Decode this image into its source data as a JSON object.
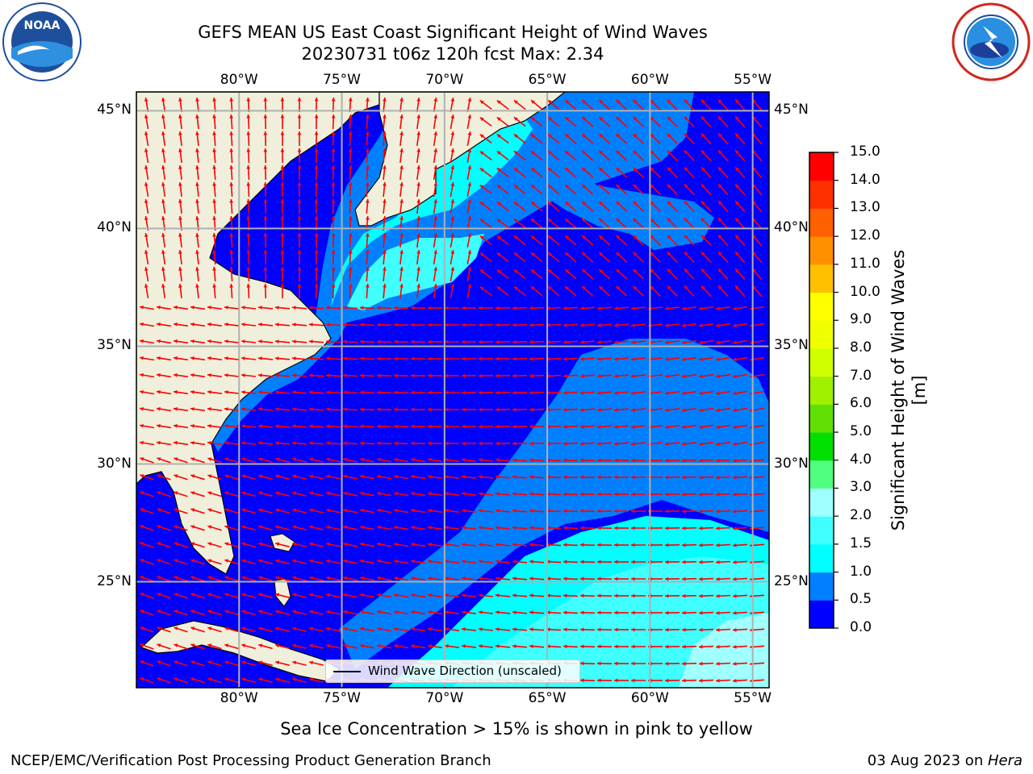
{
  "header": {
    "title_line1": "GEFS MEAN US East Coast Significant Height of Wind Waves",
    "title_line2": "20230731 t06z 120h fcst   Max: 2.34"
  },
  "logos": {
    "left": {
      "text": "NOAA",
      "ring_text": "NATIONAL OCEANIC AND ATMOSPHERIC ADMINISTRATION · U.S. DEPARTMENT OF COMMERCE",
      "color": "#1d4f9c"
    },
    "right": {
      "ring_text": "NATIONAL WEATHER SERVICE",
      "color": "#d1261f"
    }
  },
  "map": {
    "lon_ticks": [
      "80°W",
      "75°W",
      "70°W",
      "65°W",
      "60°W",
      "55°W"
    ],
    "lat_ticks": [
      "45°N",
      "40°N",
      "35°N",
      "30°N",
      "25°N"
    ],
    "lon_values": [
      -80,
      -75,
      -70,
      -65,
      -60,
      -55
    ],
    "lat_values": [
      45,
      40,
      35,
      30,
      25
    ],
    "extent": {
      "lon_min": -85,
      "lon_max": -54.2,
      "lat_min": 20.5,
      "lat_max": 45.8
    },
    "land_color": "#efefdb",
    "ocean_base_color": "#0000ff",
    "arrow_color": "#ff0000",
    "legend_label": "Wind Wave Direction (unscaled)"
  },
  "colorbar": {
    "title": "Significant Height of Wind Waves [m]",
    "levels": [
      "0.0",
      "0.5",
      "1.0",
      "1.5",
      "2.0",
      "3.0",
      "4.0",
      "5.0",
      "6.0",
      "7.0",
      "8.0",
      "9.0",
      "10.0",
      "11.0",
      "12.0",
      "13.0",
      "14.0",
      "15.0"
    ],
    "colors": [
      "#0000ff",
      "#0080ff",
      "#00ffff",
      "#40ffff",
      "#a0ffff",
      "#50ff80",
      "#00e000",
      "#60e000",
      "#a0f000",
      "#d0ff00",
      "#f0ff00",
      "#ffff00",
      "#ffc000",
      "#ff9000",
      "#ff6000",
      "#ff3000",
      "#ff0000"
    ]
  },
  "footer": {
    "sea_ice_note": "Sea Ice Concentration > 15% is shown in pink to yellow",
    "credit": "NCEP/EMC/Verification Post Processing Product Generation Branch",
    "date": "03 Aug 2023 on ",
    "host": "Hera"
  }
}
